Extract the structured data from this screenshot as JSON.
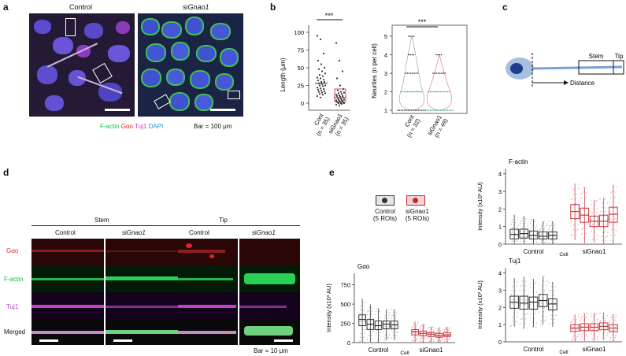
{
  "panels": {
    "a": {
      "label": "a",
      "col_control": "Control",
      "col_si_prefix": "si",
      "col_si_gene": "Gnao1",
      "legend": {
        "factin": "F-actin",
        "gao": "Gαo",
        "tuj1": "Tuj1",
        "dapi": "DAPI"
      },
      "bar": "Bar = 100 μm"
    },
    "b": {
      "label": "b",
      "sig1": "***",
      "sig2": "***",
      "left_ylabel": "Length (μm)",
      "right_ylabel": "Neurites (n per cell)",
      "left_xcats": [
        "Cont",
        "siGnao1"
      ],
      "left_xn": [
        "(n = 35)",
        "(n = 35)"
      ],
      "right_xcats": [
        "Cont",
        "siGnao1"
      ],
      "right_xn": [
        "(n = 32)",
        "(n = 49)"
      ],
      "left_yticks": [
        "100",
        "75",
        "50",
        "25",
        "0"
      ],
      "right_yticks": [
        "5",
        "4",
        "3",
        "2",
        "1"
      ]
    },
    "c": {
      "label": "c",
      "stem": "Stem",
      "tip": "Tip",
      "distance": "Distance"
    },
    "d": {
      "label": "d",
      "stem": "Stem",
      "tip": "Tip",
      "col_control": "Control",
      "col_si_prefix": "si",
      "col_si_gene": "Gnao1",
      "rows": [
        "Gαo",
        "F-actin",
        "Tuj1",
        "Merged"
      ],
      "bar": "Bar = 10 μm"
    },
    "e": {
      "label": "e",
      "legend_control": "Control",
      "legend_control_n": "(5 ROIs)",
      "legend_si": "siGnao1",
      "legend_si_n": "(5 ROIs)",
      "gao_title": "Gαo",
      "factin_title": "F-actin",
      "tuj1_title": "Tuj1",
      "ylabel_gao": "Intensity (x10³ AU)",
      "ylabel_other": "Intensity (x10³ AU)",
      "x_control": "Control",
      "x_cell": "Cell",
      "x_si": "siGnao1",
      "gao_yticks": [
        "750",
        "500",
        "250",
        "0"
      ],
      "factin_yticks": [
        "4",
        "3",
        "2",
        "1",
        "0"
      ],
      "tuj1_yticks": [
        "4",
        "3",
        "2",
        "1",
        "0"
      ]
    }
  },
  "chart_data": [
    {
      "type": "scatter",
      "title": "",
      "ylabel": "Length (μm)",
      "categories": [
        "Cont (n = 35)",
        "siGnao1 (n = 35)"
      ],
      "ylim": [
        -10,
        110
      ],
      "series": [
        {
          "name": "Cont",
          "values": [
            95,
            90,
            70,
            60,
            55,
            50,
            48,
            45,
            42,
            40,
            38,
            36,
            35,
            33,
            32,
            30,
            30,
            28,
            27,
            25,
            25,
            24,
            22,
            21,
            20,
            19,
            18,
            17,
            16,
            15,
            14,
            13,
            12,
            10,
            8
          ]
        },
        {
          "name": "siGnao1",
          "values": [
            85,
            60,
            45,
            35,
            25,
            20,
            18,
            16,
            15,
            14,
            13,
            12,
            11,
            10,
            10,
            9,
            8,
            7,
            6,
            5,
            5,
            4,
            4,
            3,
            3,
            2,
            2,
            1,
            1,
            0,
            0,
            0,
            -1,
            -2,
            -3
          ]
        }
      ],
      "median": [
        28,
        8
      ]
    },
    {
      "type": "scatter",
      "title": "",
      "ylabel": "Neurites (n per cell)",
      "categories": [
        "Cont (n = 32)",
        "siGnao1 (n = 49)"
      ],
      "ylim": [
        1,
        5
      ],
      "series": [
        {
          "name": "Cont",
          "levels": [
            5,
            4,
            3,
            2,
            1
          ]
        },
        {
          "name": "siGnao1",
          "levels": [
            4,
            3,
            2,
            1
          ]
        }
      ]
    },
    {
      "type": "box",
      "title": "Gαo",
      "ylabel": "Intensity (x10³ AU)",
      "ylim": [
        0,
        900
      ],
      "groups": [
        "Control",
        "siGnao1"
      ],
      "series": [
        {
          "name": "Control",
          "medians": [
            300,
            240,
            220,
            240,
            230
          ],
          "q1": [
            220,
            170,
            170,
            180,
            180
          ],
          "q3": [
            360,
            300,
            280,
            280,
            280
          ]
        },
        {
          "name": "siGnao1",
          "medians": [
            140,
            120,
            110,
            90,
            100
          ],
          "q1": [
            100,
            90,
            80,
            70,
            80
          ],
          "q3": [
            170,
            150,
            130,
            120,
            130
          ]
        }
      ]
    },
    {
      "type": "box",
      "title": "F-actin",
      "ylabel": "Intensity (x10³ AU)",
      "ylim": [
        0,
        4.3
      ],
      "groups": [
        "Control",
        "siGnao1"
      ],
      "series": [
        {
          "name": "Control",
          "medians": [
            0.55,
            0.6,
            0.5,
            0.45,
            0.5
          ],
          "q1": [
            0.3,
            0.35,
            0.3,
            0.3,
            0.3
          ],
          "q3": [
            0.85,
            0.85,
            0.75,
            0.7,
            0.7
          ]
        },
        {
          "name": "siGnao1",
          "medians": [
            1.85,
            1.65,
            1.3,
            1.3,
            1.7
          ],
          "q1": [
            1.45,
            1.25,
            1.0,
            1.0,
            1.25
          ],
          "q3": [
            2.25,
            2.05,
            1.6,
            1.65,
            2.1
          ]
        }
      ]
    },
    {
      "type": "box",
      "title": "Tuj1",
      "ylabel": "Intensity (x10³ AU)",
      "ylim": [
        0,
        4.3
      ],
      "groups": [
        "Control",
        "siGnao1"
      ],
      "series": [
        {
          "name": "Control",
          "medians": [
            2.3,
            2.25,
            2.3,
            2.4,
            2.2
          ],
          "q1": [
            1.95,
            1.9,
            1.9,
            2.05,
            1.85
          ],
          "q3": [
            2.65,
            2.65,
            2.6,
            2.75,
            2.5
          ]
        },
        {
          "name": "siGnao1",
          "medians": [
            0.8,
            0.85,
            0.85,
            0.9,
            0.8
          ],
          "q1": [
            0.6,
            0.65,
            0.65,
            0.7,
            0.6
          ],
          "q3": [
            1.0,
            1.05,
            1.05,
            1.1,
            1.0
          ]
        }
      ]
    }
  ],
  "colors": {
    "control": "#222222",
    "si": "#c0282f",
    "factin": "#18b84a",
    "gao": "#e0262a",
    "tuj1": "#c13cc8",
    "dapi": "#2a8fd6",
    "teal": "#2e9e8c"
  }
}
